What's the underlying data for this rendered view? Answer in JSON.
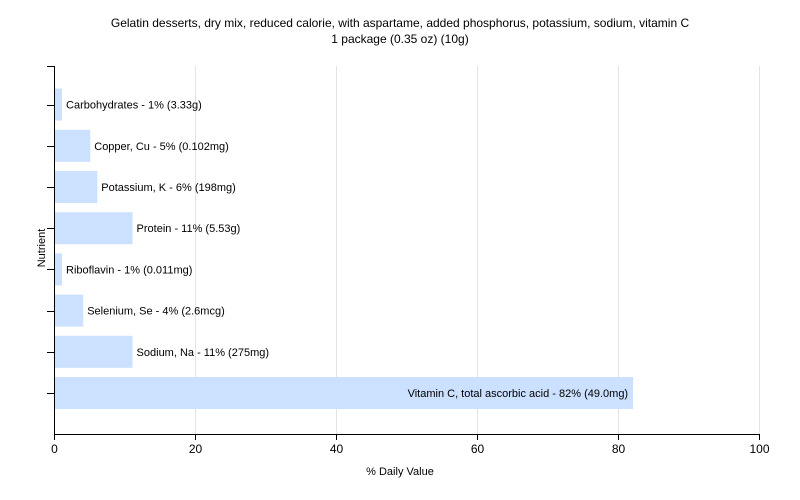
{
  "title": "Gelatin desserts, dry mix, reduced calorie, with aspartame, added phosphorus, potassium, sodium, vitamin C",
  "subtitle": "1 package (0.35 oz) (10g)",
  "chart_data": {
    "type": "bar",
    "orientation": "horizontal",
    "title": "Gelatin desserts, dry mix, reduced calorie, with aspartame, added phosphorus, potassium, sodium, vitamin C",
    "subtitle": "1 package (0.35 oz) (10g)",
    "xlabel": "% Daily Value",
    "ylabel": "Nutrient",
    "xlim": [
      0,
      100
    ],
    "xticks": [
      0,
      20,
      40,
      60,
      80,
      100
    ],
    "grid": "vertical",
    "bar_color": "#cce0ff",
    "categories": [
      "Carbohydrates - 1% (3.33g)",
      "Copper, Cu - 5% (0.102mg)",
      "Potassium, K - 6% (198mg)",
      "Protein - 11% (5.53g)",
      "Riboflavin - 1% (0.011mg)",
      "Selenium, Se - 4% (2.6mcg)",
      "Sodium, Na - 11% (275mg)",
      "Vitamin C, total ascorbic acid - 82% (49.0mg)"
    ],
    "values": [
      1,
      5,
      6,
      11,
      1,
      4,
      11,
      82
    ]
  }
}
